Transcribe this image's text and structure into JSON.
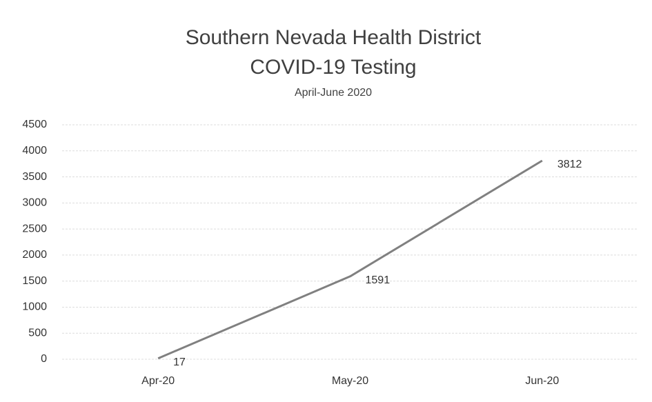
{
  "chart_data": {
    "type": "line",
    "title": [
      "Southern Nevada Health District",
      "COVID-19 Testing"
    ],
    "subtitle": "April-June 2020",
    "categories": [
      "Apr-20",
      "May-20",
      "Jun-20"
    ],
    "values": [
      17,
      1591,
      3812
    ],
    "color": "#808080",
    "ylim": [
      0,
      4500
    ],
    "yticks": [
      0,
      500,
      1000,
      1500,
      2000,
      2500,
      3000,
      3500,
      4000,
      4500
    ],
    "grid": true
  }
}
